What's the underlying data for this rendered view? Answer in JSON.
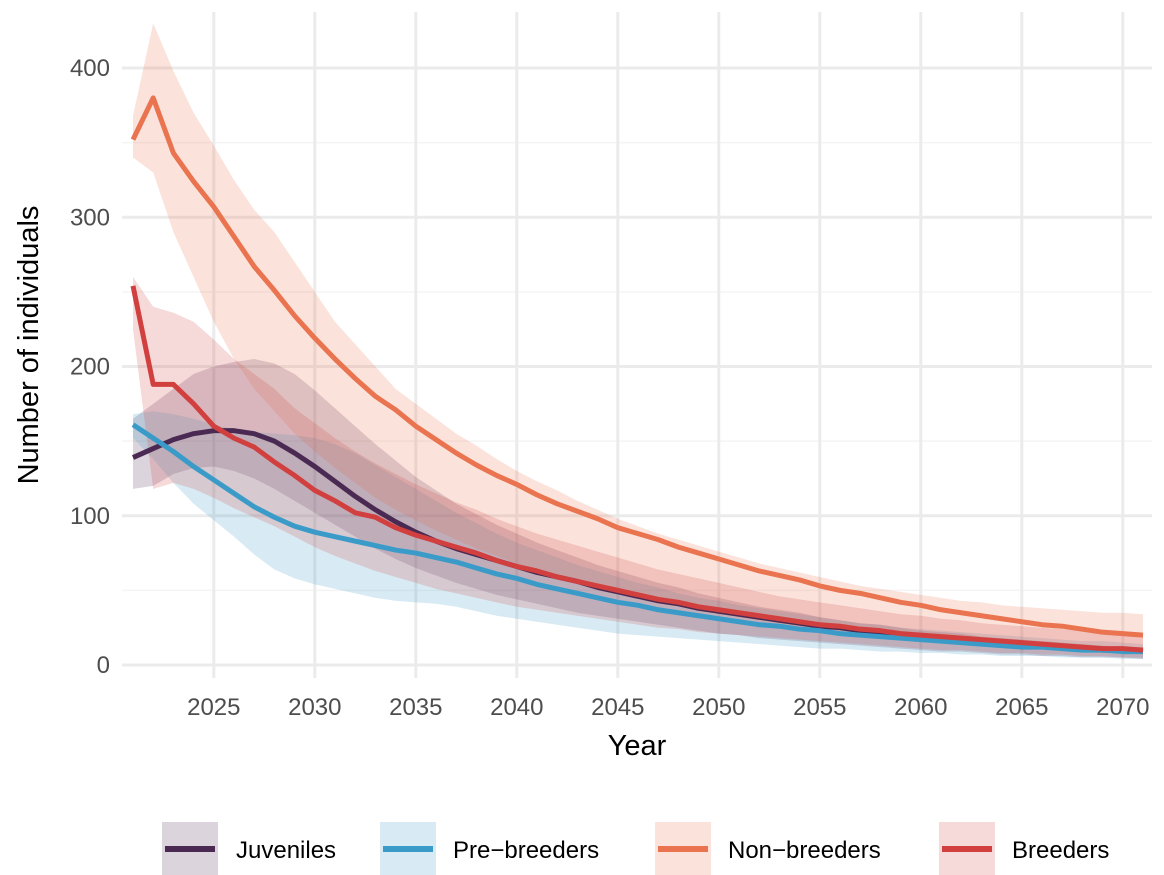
{
  "chart_data": {
    "type": "line",
    "title": "",
    "xlabel": "Year",
    "ylabel": "Number of individuals",
    "xlim": [
      2021,
      2071
    ],
    "ylim": [
      0,
      400
    ],
    "x_ticks": [
      2025,
      2030,
      2035,
      2040,
      2045,
      2050,
      2055,
      2060,
      2065,
      2070
    ],
    "y_ticks": [
      0,
      100,
      200,
      300,
      400
    ],
    "grid": true,
    "legend_position": "bottom",
    "x": [
      2021,
      2022,
      2023,
      2024,
      2025,
      2026,
      2027,
      2028,
      2029,
      2030,
      2031,
      2032,
      2033,
      2034,
      2035,
      2036,
      2037,
      2038,
      2039,
      2040,
      2041,
      2042,
      2043,
      2044,
      2045,
      2046,
      2047,
      2048,
      2049,
      2050,
      2051,
      2052,
      2053,
      2054,
      2055,
      2056,
      2057,
      2058,
      2059,
      2060,
      2061,
      2062,
      2063,
      2064,
      2065,
      2066,
      2067,
      2068,
      2069,
      2070,
      2071
    ],
    "series": [
      {
        "name": "Juveniles",
        "color": "#4a2a52",
        "values": [
          139,
          145,
          151,
          155,
          157,
          157,
          155,
          150,
          142,
          133,
          123,
          113,
          104,
          96,
          89,
          83,
          78,
          74,
          70,
          66,
          62,
          59,
          56,
          52,
          49,
          46,
          43,
          41,
          38,
          36,
          34,
          32,
          30,
          28,
          26,
          25,
          23,
          22,
          20,
          19,
          18,
          17,
          16,
          15,
          14,
          13,
          12,
          11,
          10,
          10,
          9
        ],
        "lower": [
          118,
          120,
          128,
          132,
          133,
          130,
          125,
          118,
          110,
          102,
          94,
          86,
          78,
          71,
          65,
          60,
          55,
          51,
          47,
          44,
          41,
          38,
          35,
          33,
          31,
          29,
          27,
          25,
          23,
          21,
          20,
          18,
          17,
          16,
          15,
          14,
          13,
          12,
          11,
          10,
          9,
          9,
          8,
          7,
          7,
          6,
          6,
          5,
          5,
          5,
          4
        ],
        "upper": [
          165,
          175,
          185,
          195,
          200,
          203,
          205,
          202,
          195,
          184,
          172,
          160,
          148,
          137,
          126,
          117,
          108,
          101,
          94,
          88,
          82,
          77,
          72,
          67,
          63,
          59,
          55,
          52,
          48,
          45,
          42,
          39,
          37,
          35,
          32,
          30,
          28,
          27,
          25,
          23,
          22,
          21,
          19,
          18,
          17,
          16,
          15,
          14,
          13,
          12,
          12
        ]
      },
      {
        "name": "Pre-breeders",
        "color": "#3a9bc9",
        "values": [
          161,
          152,
          143,
          133,
          124,
          115,
          106,
          99,
          93,
          89,
          86,
          83,
          80,
          77,
          75,
          72,
          69,
          65,
          61,
          58,
          54,
          51,
          48,
          45,
          42,
          40,
          37,
          35,
          33,
          31,
          29,
          27,
          26,
          24,
          23,
          21,
          20,
          19,
          18,
          17,
          16,
          15,
          14,
          13,
          12,
          12,
          11,
          10,
          10,
          9,
          9
        ],
        "lower": [
          152,
          138,
          122,
          108,
          97,
          86,
          74,
          64,
          58,
          54,
          51,
          48,
          45,
          43,
          42,
          41,
          39,
          36,
          33,
          31,
          29,
          27,
          25,
          23,
          21,
          20,
          19,
          18,
          17,
          16,
          15,
          14,
          13,
          12,
          11,
          11,
          10,
          9,
          9,
          8,
          8,
          7,
          7,
          6,
          6,
          6,
          5,
          5,
          5,
          4,
          4
        ],
        "upper": [
          168,
          170,
          168,
          165,
          161,
          158,
          156,
          155,
          154,
          152,
          148,
          142,
          134,
          126,
          118,
          110,
          102,
          95,
          88,
          82,
          77,
          72,
          67,
          63,
          59,
          55,
          52,
          48,
          45,
          43,
          40,
          38,
          36,
          34,
          32,
          30,
          28,
          27,
          25,
          24,
          23,
          22,
          21,
          20,
          19,
          18,
          17,
          16,
          16,
          15,
          14
        ]
      },
      {
        "name": "Non-breeders",
        "color": "#e9744f",
        "values": [
          352,
          380,
          343,
          324,
          307,
          287,
          267,
          251,
          234,
          219,
          205,
          192,
          180,
          171,
          160,
          151,
          142,
          134,
          127,
          121,
          114,
          108,
          103,
          98,
          92,
          88,
          84,
          79,
          75,
          71,
          67,
          63,
          60,
          57,
          53,
          50,
          48,
          45,
          42,
          40,
          37,
          35,
          33,
          31,
          29,
          27,
          26,
          24,
          22,
          21,
          20
        ],
        "lower": [
          340,
          330,
          290,
          260,
          230,
          205,
          185,
          170,
          155,
          143,
          132,
          122,
          112,
          104,
          97,
          90,
          84,
          78,
          73,
          68,
          63,
          59,
          55,
          52,
          48,
          45,
          42,
          40,
          37,
          35,
          32,
          30,
          28,
          26,
          25,
          23,
          22,
          20,
          19,
          18,
          17,
          16,
          15,
          14,
          13,
          12,
          11,
          10,
          10,
          9,
          8
        ],
        "upper": [
          368,
          430,
          398,
          370,
          348,
          325,
          305,
          290,
          270,
          250,
          230,
          215,
          200,
          185,
          175,
          165,
          155,
          147,
          138,
          130,
          123,
          117,
          110,
          104,
          98,
          93,
          88,
          84,
          80,
          76,
          72,
          68,
          65,
          62,
          59,
          56,
          53,
          51,
          49,
          47,
          45,
          43,
          42,
          40,
          39,
          38,
          37,
          36,
          35,
          35,
          34
        ]
      },
      {
        "name": "Breeders",
        "color": "#d1403f",
        "values": [
          254,
          188,
          188,
          175,
          160,
          152,
          146,
          136,
          127,
          117,
          110,
          102,
          99,
          92,
          87,
          83,
          79,
          75,
          70,
          66,
          63,
          59,
          56,
          53,
          50,
          47,
          44,
          42,
          39,
          37,
          35,
          33,
          31,
          29,
          27,
          26,
          24,
          23,
          21,
          20,
          19,
          18,
          17,
          16,
          15,
          14,
          13,
          12,
          11,
          11,
          10
        ],
        "lower": [
          225,
          118,
          122,
          118,
          112,
          105,
          99,
          93,
          86,
          79,
          73,
          68,
          63,
          59,
          55,
          51,
          48,
          45,
          42,
          39,
          37,
          35,
          33,
          31,
          29,
          27,
          25,
          24,
          22,
          21,
          20,
          19,
          18,
          17,
          16,
          15,
          14,
          13,
          12,
          11,
          10,
          10,
          9,
          8,
          8,
          7,
          7,
          6,
          6,
          5,
          5
        ],
        "upper": [
          260,
          240,
          236,
          230,
          218,
          205,
          195,
          185,
          172,
          162,
          152,
          143,
          135,
          128,
          121,
          115,
          109,
          104,
          98,
          93,
          88,
          84,
          80,
          76,
          72,
          68,
          64,
          61,
          58,
          55,
          52,
          49,
          46,
          44,
          42,
          40,
          38,
          36,
          34,
          33,
          31,
          30,
          28,
          27,
          26,
          25,
          24,
          23,
          22,
          21,
          20
        ]
      }
    ]
  }
}
